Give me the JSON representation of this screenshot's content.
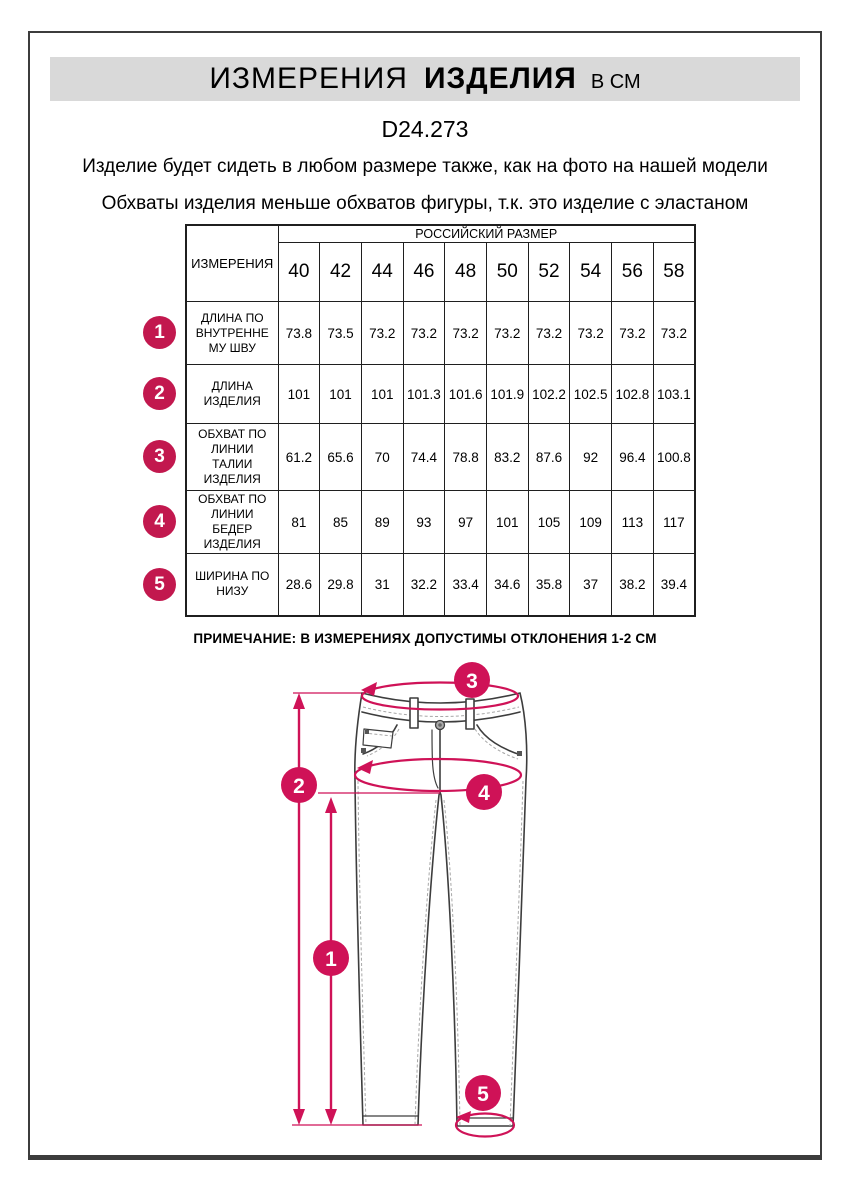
{
  "page": {
    "title": {
      "part1": "ИЗМЕРЕНИЯ",
      "part2": "ИЗДЕЛИЯ",
      "suffix": "В СМ"
    },
    "product_code": "D24.273",
    "description_lines": [
      "Изделие будет сидеть в любом размере также, как на фото на нашей модели",
      "Обхваты изделия меньше обхватов фигуры, т.к. это изделие с эластаном"
    ],
    "note": "ПРИМЕЧАНИЕ: В ИЗМЕРЕНИЯХ ДОПУСТИМЫ ОТКЛОНЕНИЯ 1-2 СМ"
  },
  "table": {
    "measurements_header": "ИЗМЕРЕНИЯ",
    "size_group_header": "РОССИЙСКИЙ РАЗМЕР",
    "sizes": [
      "40",
      "42",
      "44",
      "46",
      "48",
      "50",
      "52",
      "54",
      "56",
      "58"
    ],
    "rows": [
      {
        "num": "1",
        "label": "ДЛИНА ПО\nВНУТРЕННЕ\nМУ ШВУ",
        "values": [
          "73.8",
          "73.5",
          "73.2",
          "73.2",
          "73.2",
          "73.2",
          "73.2",
          "73.2",
          "73.2",
          "73.2"
        ]
      },
      {
        "num": "2",
        "label": "ДЛИНА\nИЗДЕЛИЯ",
        "values": [
          "101",
          "101",
          "101",
          "101.3",
          "101.6",
          "101.9",
          "102.2",
          "102.5",
          "102.8",
          "103.1"
        ]
      },
      {
        "num": "3",
        "label": "ОБХВАТ ПО\nЛИНИИ\nТАЛИИ\nИЗДЕЛИЯ",
        "values": [
          "61.2",
          "65.6",
          "70",
          "74.4",
          "78.8",
          "83.2",
          "87.6",
          "92",
          "96.4",
          "100.8"
        ]
      },
      {
        "num": "4",
        "label": "ОБХВАТ ПО\nЛИНИИ\nБЕДЕР\nИЗДЕЛИЯ",
        "values": [
          "81",
          "85",
          "89",
          "93",
          "97",
          "101",
          "105",
          "109",
          "113",
          "117"
        ]
      },
      {
        "num": "5",
        "label": "ШИРИНА ПО\nНИЗУ",
        "values": [
          "28.6",
          "29.8",
          "31",
          "32.2",
          "33.4",
          "34.6",
          "35.8",
          "37",
          "38.2",
          "39.4"
        ]
      }
    ]
  },
  "diagram": {
    "markers": [
      "1",
      "2",
      "3",
      "4",
      "5"
    ]
  },
  "colors": {
    "accent": "#c2184e",
    "accent_diagram": "#cf1257",
    "title_band": "#d9d9d9",
    "table_border": "#1f1f1f",
    "sketch_line": "#3d3d3d"
  }
}
